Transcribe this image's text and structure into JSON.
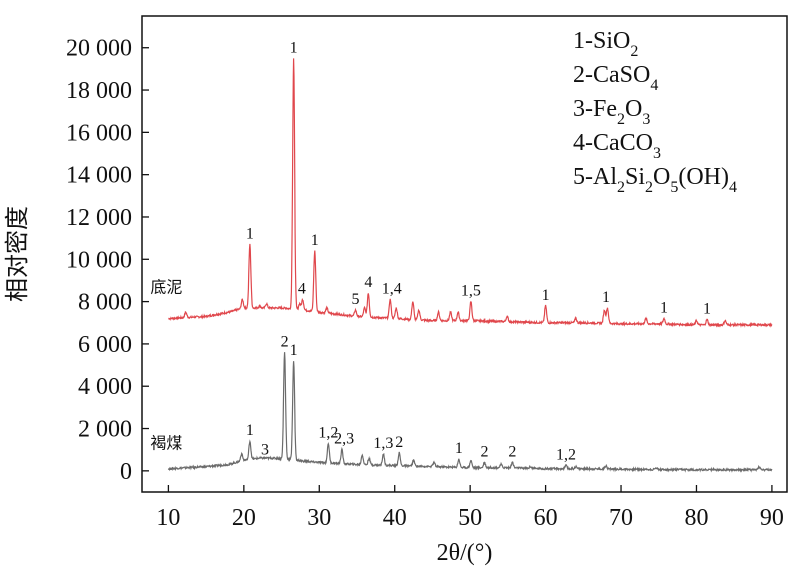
{
  "chart_data": {
    "type": "line",
    "xlabel": "2θ/(°)",
    "ylabel": "相对密度",
    "xlim": [
      6.5,
      92
    ],
    "ylim": [
      -1000,
      21500
    ],
    "xticks": [
      10,
      20,
      30,
      40,
      50,
      60,
      70,
      80,
      90
    ],
    "yticks": [
      0,
      2000,
      4000,
      6000,
      8000,
      10000,
      12000,
      14000,
      16000,
      18000,
      20000
    ],
    "ytick_labels": [
      "0",
      "2 000",
      "4 000",
      "6 000",
      "8 000",
      "10 000",
      "12 000",
      "14 000",
      "16 000",
      "18 000",
      "20 000"
    ],
    "legend": {
      "placement": "top-right",
      "entries": [
        {
          "id": "1",
          "formula": "SiO",
          "parts": [
            [
              "1-SiO",
              ""
            ],
            [
              "2",
              "sub"
            ]
          ]
        },
        {
          "id": "2",
          "parts": [
            [
              "2-CaSO",
              ""
            ],
            [
              "4",
              "sub"
            ]
          ]
        },
        {
          "id": "3",
          "parts": [
            [
              "3-Fe",
              ""
            ],
            [
              "2",
              "sub"
            ],
            [
              "O",
              ""
            ],
            [
              "3",
              "sub"
            ]
          ]
        },
        {
          "id": "4",
          "parts": [
            [
              "4-CaCO",
              ""
            ],
            [
              "3",
              "sub"
            ]
          ]
        },
        {
          "id": "5",
          "parts": [
            [
              "5-Al",
              ""
            ],
            [
              "2",
              "sub"
            ],
            [
              "Si",
              ""
            ],
            [
              "2",
              "sub"
            ],
            [
              "O",
              ""
            ],
            [
              "5",
              "sub"
            ],
            [
              "(OH)",
              ""
            ],
            [
              "4",
              "sub"
            ]
          ]
        }
      ]
    },
    "series": [
      {
        "name": "底泥",
        "color": "#e0474c",
        "baseline": [
          [
            10,
            7200
          ],
          [
            15,
            7300
          ],
          [
            18,
            7500
          ],
          [
            20,
            7700
          ],
          [
            22,
            7700
          ],
          [
            25,
            7700
          ],
          [
            28,
            7600
          ],
          [
            30,
            7500
          ],
          [
            35,
            7300
          ],
          [
            40,
            7200
          ],
          [
            45,
            7100
          ],
          [
            50,
            7100
          ],
          [
            55,
            7050
          ],
          [
            60,
            7000
          ],
          [
            65,
            7000
          ],
          [
            70,
            6950
          ],
          [
            75,
            6950
          ],
          [
            80,
            6900
          ],
          [
            85,
            6900
          ],
          [
            90,
            6900
          ]
        ],
        "peaks": [
          [
            12.3,
            7500
          ],
          [
            19.8,
            8100
          ],
          [
            20.8,
            10700
          ],
          [
            22.1,
            7800
          ],
          [
            23.0,
            7900
          ],
          [
            25.6,
            7700
          ],
          [
            26.6,
            19500
          ],
          [
            27.4,
            7900
          ],
          [
            27.8,
            8100
          ],
          [
            29.4,
            10400
          ],
          [
            31.0,
            7700
          ],
          [
            34.8,
            7600
          ],
          [
            36.0,
            7700
          ],
          [
            36.5,
            8400
          ],
          [
            39.4,
            8100
          ],
          [
            40.2,
            7700
          ],
          [
            42.4,
            8000
          ],
          [
            43.2,
            7600
          ],
          [
            45.8,
            7500
          ],
          [
            47.4,
            7500
          ],
          [
            48.4,
            7500
          ],
          [
            50.1,
            8000
          ],
          [
            54.9,
            7300
          ],
          [
            60.0,
            7800
          ],
          [
            64.0,
            7200
          ],
          [
            67.8,
            7600
          ],
          [
            68.2,
            7700
          ],
          [
            73.3,
            7200
          ],
          [
            75.7,
            7200
          ],
          [
            80.0,
            7100
          ],
          [
            81.4,
            7150
          ],
          [
            83.8,
            7100
          ]
        ]
      },
      {
        "name": "褐煤",
        "color": "#6b6b6b",
        "baseline": [
          [
            10,
            100
          ],
          [
            15,
            200
          ],
          [
            18,
            300
          ],
          [
            20,
            500
          ],
          [
            22,
            600
          ],
          [
            24,
            600
          ],
          [
            26,
            550
          ],
          [
            28,
            450
          ],
          [
            30,
            400
          ],
          [
            35,
            300
          ],
          [
            40,
            250
          ],
          [
            45,
            200
          ],
          [
            50,
            150
          ],
          [
            55,
            150
          ],
          [
            60,
            100
          ],
          [
            65,
            100
          ],
          [
            70,
            80
          ],
          [
            75,
            60
          ],
          [
            80,
            50
          ],
          [
            85,
            50
          ],
          [
            90,
            50
          ]
        ],
        "peaks": [
          [
            19.7,
            800
          ],
          [
            20.8,
            1400
          ],
          [
            22.8,
            500
          ],
          [
            25.4,
            5600
          ],
          [
            26.6,
            5200
          ],
          [
            28.5,
            450
          ],
          [
            31.2,
            1300
          ],
          [
            33.0,
            1000
          ],
          [
            35.7,
            750
          ],
          [
            36.6,
            600
          ],
          [
            38.5,
            800
          ],
          [
            40.6,
            850
          ],
          [
            42.5,
            500
          ],
          [
            45.2,
            400
          ],
          [
            48.5,
            550
          ],
          [
            50.1,
            500
          ],
          [
            51.9,
            400
          ],
          [
            54.1,
            300
          ],
          [
            55.6,
            400
          ],
          [
            58.0,
            200
          ],
          [
            62.7,
            250
          ],
          [
            64.0,
            200
          ],
          [
            68.0,
            250
          ],
          [
            74.7,
            150
          ],
          [
            88.3,
            200
          ]
        ]
      }
    ],
    "peak_labels": [
      {
        "text": "1",
        "x": 26.6,
        "y": 19500
      },
      {
        "text": "1",
        "x": 20.8,
        "y": 10700
      },
      {
        "text": "1",
        "x": 29.4,
        "y": 10400
      },
      {
        "text": "4",
        "x": 27.7,
        "y": 8100
      },
      {
        "text": "5",
        "x": 34.8,
        "y": 7600
      },
      {
        "text": "4",
        "x": 36.5,
        "y": 8400
      },
      {
        "text": "1,4",
        "x": 39.6,
        "y": 8100
      },
      {
        "text": "1,5",
        "x": 50.1,
        "y": 8000
      },
      {
        "text": "1",
        "x": 60.0,
        "y": 7800
      },
      {
        "text": "1",
        "x": 68.0,
        "y": 7700
      },
      {
        "text": "1",
        "x": 75.7,
        "y": 7200
      },
      {
        "text": "1",
        "x": 81.4,
        "y": 7150
      },
      {
        "text": "2",
        "x": 25.4,
        "y": 5600
      },
      {
        "text": "1",
        "x": 26.6,
        "y": 5200
      },
      {
        "text": "1",
        "x": 20.8,
        "y": 1400
      },
      {
        "text": "3",
        "x": 22.8,
        "y": 500
      },
      {
        "text": "1,2",
        "x": 31.2,
        "y": 1300
      },
      {
        "text": "2,3",
        "x": 33.3,
        "y": 1000
      },
      {
        "text": "1,3",
        "x": 38.5,
        "y": 800
      },
      {
        "text": "2",
        "x": 40.6,
        "y": 850
      },
      {
        "text": "1",
        "x": 48.5,
        "y": 550
      },
      {
        "text": "2",
        "x": 51.9,
        "y": 400
      },
      {
        "text": "2",
        "x": 55.6,
        "y": 400
      },
      {
        "text": "1,2",
        "x": 62.7,
        "y": 250
      }
    ]
  }
}
